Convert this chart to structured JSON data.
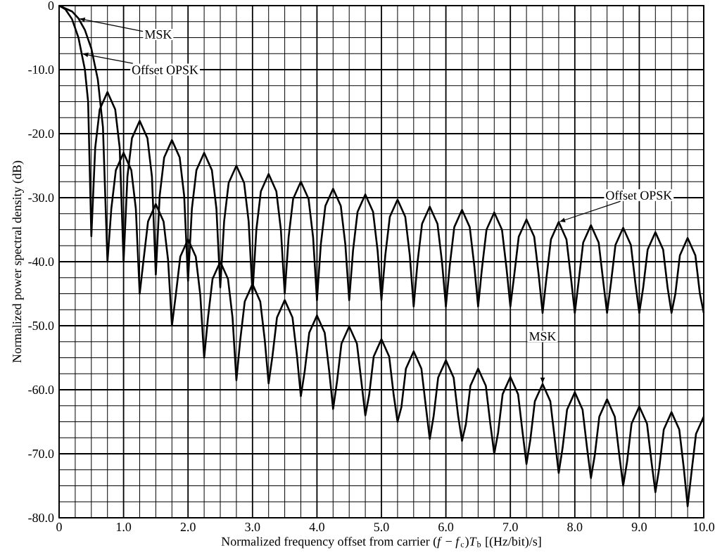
{
  "chart_data": {
    "type": "line",
    "xlabel": "Normalized frequency offset from carrier (*f* − *f*$_{c}$)*T*$_{b}$ [(Hz/bit)/s]",
    "ylabel": "Normalized power spectral density (dB)",
    "xlim": [
      0,
      10
    ],
    "ylim": [
      -80,
      0
    ],
    "xticks": [
      0,
      {
        "value": 1,
        "label": "1.0"
      },
      {
        "value": 2,
        "label": "2.0"
      },
      {
        "value": 3,
        "label": "3.0"
      },
      {
        "value": 4,
        "label": "4.0"
      },
      {
        "value": 5,
        "label": "5.0"
      },
      {
        "value": 6,
        "label": "6.0"
      },
      {
        "value": 7,
        "label": "7.0"
      },
      {
        "value": 8,
        "label": "8.0"
      },
      {
        "value": 9,
        "label": "9.0"
      },
      {
        "value": 10,
        "label": "10.0"
      }
    ],
    "yticks": [
      {
        "value": -80,
        "label": "-80.0"
      },
      {
        "value": -70,
        "label": "-70.0"
      },
      {
        "value": -60,
        "label": "-60.0"
      },
      {
        "value": -50,
        "label": "-50.0"
      },
      {
        "value": -40,
        "label": "-40.0"
      },
      {
        "value": -30,
        "label": "-30.0"
      },
      {
        "value": -20,
        "label": "-20.0"
      },
      {
        "value": -10,
        "label": "-10.0"
      },
      0
    ],
    "grid": true,
    "marker": "none",
    "line_style": "solid",
    "series": [
      {
        "color": "#000000",
        "x": [
          0,
          0.1,
          0.2,
          0.3,
          0.4,
          0.45,
          0.5,
          0.56,
          0.63,
          0.75,
          0.87,
          0.94,
          1.0,
          1.06,
          1.13,
          1.25,
          1.37,
          1.44,
          1.5,
          1.56,
          1.63,
          1.75,
          1.87,
          1.94,
          2.0,
          2.06,
          2.13,
          2.25,
          2.37,
          2.44,
          2.5,
          2.56,
          2.63,
          2.75,
          2.87,
          2.94,
          3.0,
          3.06,
          3.13,
          3.25,
          3.37,
          3.44,
          3.5,
          3.56,
          3.63,
          3.75,
          3.87,
          3.94,
          4.0,
          4.06,
          4.13,
          4.25,
          4.37,
          4.44,
          4.5,
          4.56,
          4.63,
          4.75,
          4.87,
          4.94,
          5.0,
          5.06,
          5.13,
          5.25,
          5.37,
          5.44,
          5.5,
          5.56,
          5.63,
          5.75,
          5.87,
          5.94,
          6.0,
          6.06,
          6.13,
          6.25,
          6.37,
          6.44,
          6.5,
          6.56,
          6.63,
          6.75,
          6.87,
          6.94,
          7.0,
          7.06,
          7.13,
          7.25,
          7.37,
          7.44,
          7.5,
          7.56,
          7.63,
          7.75,
          7.87,
          7.94,
          8.0,
          8.06,
          8.13,
          8.25,
          8.37,
          8.44,
          8.5,
          8.56,
          8.63,
          8.75,
          8.87,
          8.94,
          9.0,
          9.06,
          9.13,
          9.25,
          9.37,
          9.44,
          9.5,
          9.56,
          9.63,
          9.75,
          9.87,
          9.94,
          10.0
        ],
        "values": [
          0,
          -0.6,
          -2.1,
          -5,
          -10,
          -15,
          -36,
          -22.2,
          -16.2,
          -13.5,
          -16.2,
          -22.2,
          -40,
          -26.7,
          -20.7,
          -18,
          -20.7,
          -26.7,
          -42,
          -29.7,
          -23.7,
          -21,
          -23.7,
          -29.7,
          -43,
          -31.7,
          -25.7,
          -23,
          -25.7,
          -31.7,
          -44,
          -33.7,
          -27.7,
          -25,
          -27.7,
          -33.7,
          -45,
          -35,
          -29,
          -26.3,
          -29,
          -35,
          -45,
          -36.2,
          -30.2,
          -27.5,
          -30.2,
          -36.2,
          -46,
          -37.3,
          -31.3,
          -28.6,
          -31.3,
          -37.3,
          -46,
          -38.2,
          -32.2,
          -29.5,
          -32.2,
          -38.2,
          -46,
          -39,
          -33,
          -30.3,
          -33,
          -39,
          -47,
          -40.1,
          -34.1,
          -31.4,
          -34.1,
          -40.1,
          -47,
          -40.6,
          -34.6,
          -31.9,
          -34.6,
          -40.6,
          -47,
          -41,
          -35,
          -32.3,
          -35,
          -41,
          -47,
          -42.1,
          -36.1,
          -33.4,
          -36.1,
          -42.1,
          -48,
          -42.5,
          -36.5,
          -33.8,
          -36.5,
          -42.5,
          -48,
          -43,
          -37,
          -34.3,
          -37,
          -43,
          -48,
          -43.4,
          -37.4,
          -34.7,
          -37.4,
          -43.4,
          -48,
          -44.1,
          -38.1,
          -35.4,
          -38.1,
          -44.1,
          -48,
          -45,
          -39,
          -36.3,
          -39,
          -45,
          -48
        ]
      },
      {
        "color": "#000000",
        "x": [
          0,
          0.2,
          0.3,
          0.4,
          0.5,
          0.6,
          0.68,
          0.75,
          0.81,
          0.88,
          1.0,
          1.12,
          1.19,
          1.25,
          1.31,
          1.38,
          1.5,
          1.62,
          1.69,
          1.75,
          1.81,
          1.88,
          2.0,
          2.12,
          2.19,
          2.25,
          2.31,
          2.38,
          2.5,
          2.62,
          2.69,
          2.75,
          2.81,
          2.88,
          3.0,
          3.12,
          3.19,
          3.25,
          3.31,
          3.38,
          3.5,
          3.62,
          3.69,
          3.75,
          3.81,
          3.88,
          4.0,
          4.12,
          4.19,
          4.25,
          4.31,
          4.38,
          4.5,
          4.62,
          4.69,
          4.75,
          4.81,
          4.88,
          5.0,
          5.12,
          5.19,
          5.25,
          5.31,
          5.38,
          5.5,
          5.62,
          5.69,
          5.75,
          5.81,
          5.88,
          6.0,
          6.12,
          6.19,
          6.25,
          6.31,
          6.38,
          6.5,
          6.62,
          6.69,
          6.75,
          6.81,
          6.88,
          7.0,
          7.12,
          7.19,
          7.25,
          7.31,
          7.38,
          7.5,
          7.62,
          7.69,
          7.75,
          7.81,
          7.88,
          8.0,
          8.12,
          8.19,
          8.25,
          8.31,
          8.38,
          8.5,
          8.62,
          8.69,
          8.75,
          8.81,
          8.88,
          9.0,
          9.12,
          9.19,
          9.25,
          9.31,
          9.38,
          9.5,
          9.62,
          9.69,
          9.75,
          9.81,
          9.88,
          10.0
        ],
        "values": [
          0,
          -0.9,
          -2,
          -3.8,
          -6.7,
          -11.5,
          -19,
          -40,
          -31.7,
          -25.7,
          -23,
          -25.7,
          -31.7,
          -45,
          -39.7,
          -33.7,
          -31,
          -33.7,
          -39.7,
          -50,
          -45.2,
          -39.2,
          -36.5,
          -39.2,
          -45.2,
          -55,
          -48.7,
          -42.7,
          -40,
          -42.7,
          -48.7,
          -58.5,
          -52.2,
          -46.2,
          -43.5,
          -46.2,
          -52.2,
          -59,
          -54.7,
          -48.7,
          -46,
          -48.7,
          -54.7,
          -61,
          -57.1,
          -51.1,
          -48.4,
          -51.1,
          -57.1,
          -63,
          -58.8,
          -52.8,
          -50.1,
          -52.8,
          -58.8,
          -64,
          -60.8,
          -54.8,
          -52.1,
          -54.8,
          -60.8,
          -65,
          -62.7,
          -56.7,
          -54,
          -56.7,
          -62.7,
          -67.7,
          -64.1,
          -58.1,
          -55.4,
          -58.1,
          -64.1,
          -68,
          -65.4,
          -59.4,
          -56.7,
          -59.4,
          -65.4,
          -70,
          -66.7,
          -60.7,
          -58,
          -60.7,
          -66.7,
          -71.6,
          -67.8,
          -61.8,
          -59.1,
          -61.8,
          -67.8,
          -73,
          -69.1,
          -63.1,
          -60.4,
          -63.1,
          -69.1,
          -73.8,
          -70.2,
          -64.2,
          -61.5,
          -64.2,
          -70.2,
          -75,
          -71.3,
          -65.3,
          -62.6,
          -65.3,
          -71.3,
          -76,
          -72.2,
          -66.2,
          -63.5,
          -66.2,
          -72.2,
          -78.2,
          -72.9,
          -66.9,
          -64.2
        ]
      }
    ],
    "annotations": [
      {
        "text": "MSK",
        "x": 0.3,
        "y": -2
      },
      {
        "text": "Offset OPSK",
        "x": 0.35,
        "y": -7.5
      },
      {
        "text": "Offset OPSK",
        "x": 7.75,
        "y": -33.8
      },
      {
        "text": "MSK",
        "x": 7.5,
        "y": -59.1
      }
    ]
  }
}
